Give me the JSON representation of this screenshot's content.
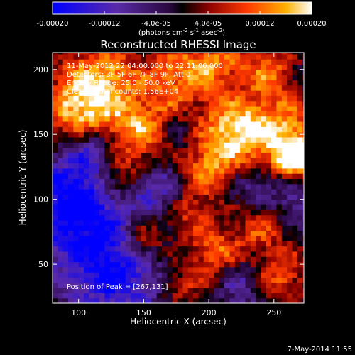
{
  "chart_data": {
    "type": "heatmap",
    "title": "Reconstructed RHESSI Image",
    "xlabel": "Heliocentric X (arcsec)",
    "ylabel": "Heliocentric Y (arcsec)",
    "xlim": [
      80,
      273
    ],
    "ylim": [
      20,
      213
    ],
    "x_ticks": [
      100,
      150,
      200,
      250
    ],
    "y_ticks": [
      50,
      100,
      150,
      200
    ],
    "colorbar": {
      "range": [
        -0.0002,
        0.0002
      ],
      "ticks": [
        -0.0002,
        -0.00012,
        -4e-05,
        4e-05,
        0.00012,
        0.0002
      ],
      "tick_labels": [
        "-0.00020",
        "-0.00012",
        "-4.0e-05",
        "4.0e-05",
        "0.00012",
        "0.00020"
      ],
      "unit_parts": [
        "(photons cm",
        "-2",
        " s",
        "-1",
        " asec",
        "-2",
        ")"
      ],
      "colormap": [
        {
          "stop": 0.0,
          "color": "#0000ff"
        },
        {
          "stop": 0.25,
          "color": "#5a2aa8"
        },
        {
          "stop": 0.45,
          "color": "#2a0840"
        },
        {
          "stop": 0.5,
          "color": "#000000"
        },
        {
          "stop": 0.6,
          "color": "#8a0000"
        },
        {
          "stop": 0.75,
          "color": "#ff3a00"
        },
        {
          "stop": 0.9,
          "color": "#ffb000"
        },
        {
          "stop": 1.0,
          "color": "#ffffff"
        }
      ]
    },
    "annotations": [
      "11-May-2012 22:04:00.000 to 22:11:00.000",
      "Detectors: 3F 5F 6F 7F 8F 9F, Att 0",
      "Energy Range: 25.0 - 50.0 keV",
      "Clean    Total counts: 1.56E+04"
    ],
    "peak_label": "Position of Peak = [267,131]",
    "peak": {
      "x": 267,
      "y": 131
    },
    "grid_cell_arcsec": 4,
    "features": [
      {
        "x": 100,
        "y": 100,
        "r": 30,
        "v": -1.0
      },
      {
        "x": 130,
        "y": 45,
        "r": 25,
        "v": -0.8
      },
      {
        "x": 160,
        "y": 110,
        "r": 14,
        "v": -0.5
      },
      {
        "x": 98,
        "y": 165,
        "r": 22,
        "v": 0.9
      },
      {
        "x": 118,
        "y": 195,
        "r": 22,
        "v": 0.8
      },
      {
        "x": 150,
        "y": 150,
        "r": 20,
        "v": 0.85
      },
      {
        "x": 175,
        "y": 195,
        "r": 18,
        "v": 0.7
      },
      {
        "x": 205,
        "y": 205,
        "r": 16,
        "v": 0.65
      },
      {
        "x": 218,
        "y": 155,
        "r": 18,
        "v": 0.9
      },
      {
        "x": 258,
        "y": 150,
        "r": 22,
        "v": 0.95
      },
      {
        "x": 267,
        "y": 131,
        "r": 10,
        "v": 1.0
      },
      {
        "x": 245,
        "y": 200,
        "r": 14,
        "v": 0.7
      },
      {
        "x": 200,
        "y": 125,
        "r": 16,
        "v": 0.7
      },
      {
        "x": 130,
        "y": 115,
        "r": 14,
        "v": 0.7
      },
      {
        "x": 185,
        "y": 90,
        "r": 14,
        "v": 0.5
      },
      {
        "x": 150,
        "y": 70,
        "r": 14,
        "v": 0.75
      },
      {
        "x": 205,
        "y": 60,
        "r": 15,
        "v": 0.7
      },
      {
        "x": 240,
        "y": 80,
        "r": 14,
        "v": 0.55
      },
      {
        "x": 255,
        "y": 40,
        "r": 18,
        "v": 0.65
      },
      {
        "x": 180,
        "y": 35,
        "r": 14,
        "v": 0.5
      },
      {
        "x": 235,
        "y": 110,
        "r": 12,
        "v": -0.4
      },
      {
        "x": 175,
        "y": 150,
        "r": 12,
        "v": -0.35
      },
      {
        "x": 110,
        "y": 140,
        "r": 12,
        "v": -0.5
      },
      {
        "x": 225,
        "y": 35,
        "r": 12,
        "v": -0.5
      },
      {
        "x": 265,
        "y": 100,
        "r": 12,
        "v": -0.4
      }
    ]
  },
  "footer": {
    "timestamp": "7-May-2014 11:55"
  }
}
